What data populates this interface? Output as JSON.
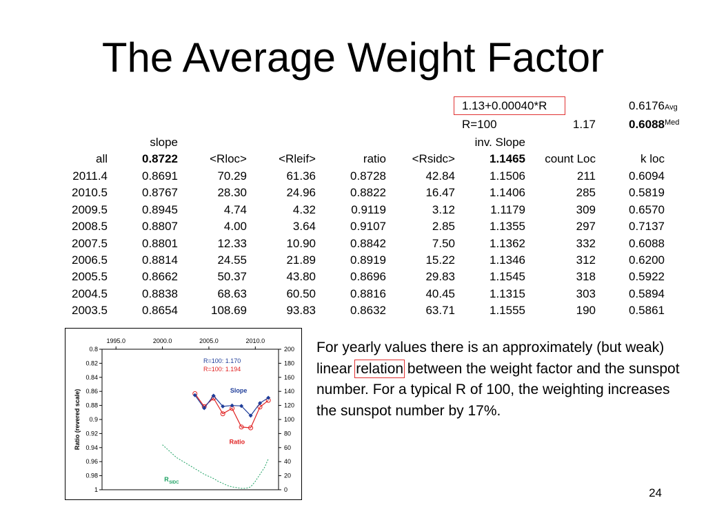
{
  "title": "The Average Weight Factor",
  "formula_box": "1.13+0.00040*R",
  "avg_value": "0.6176",
  "avg_label": "Avg",
  "r100_label": "R=100",
  "r100_value": "1.17",
  "med_value": "0.6088",
  "med_label": "Med",
  "slope_label": "slope",
  "inv_slope_label": "inv. Slope",
  "headers": {
    "all": "all",
    "slope": "0.8722",
    "rloc": "<Rloc>",
    "rleif": "<Rleif>",
    "ratio": "ratio",
    "rsidc": "<Rsidc>",
    "invslope": "1.1465",
    "count": "count Loc",
    "kloc": "k loc"
  },
  "rows": [
    [
      "2011.4",
      "0.8691",
      "70.29",
      "61.36",
      "0.8728",
      "42.84",
      "1.1506",
      "211",
      "0.6094"
    ],
    [
      "2010.5",
      "0.8767",
      "28.30",
      "24.96",
      "0.8822",
      "16.47",
      "1.1406",
      "285",
      "0.5819"
    ],
    [
      "2009.5",
      "0.8945",
      "4.74",
      "4.32",
      "0.9119",
      "3.12",
      "1.1179",
      "309",
      "0.6570"
    ],
    [
      "2008.5",
      "0.8807",
      "4.00",
      "3.64",
      "0.9107",
      "2.85",
      "1.1355",
      "297",
      "0.7137"
    ],
    [
      "2007.5",
      "0.8801",
      "12.33",
      "10.90",
      "0.8842",
      "7.50",
      "1.1362",
      "332",
      "0.6088"
    ],
    [
      "2006.5",
      "0.8814",
      "24.55",
      "21.89",
      "0.8919",
      "15.22",
      "1.1346",
      "312",
      "0.6200"
    ],
    [
      "2005.5",
      "0.8662",
      "50.37",
      "43.80",
      "0.8696",
      "29.83",
      "1.1545",
      "318",
      "0.5922"
    ],
    [
      "2004.5",
      "0.8838",
      "68.63",
      "60.50",
      "0.8816",
      "40.45",
      "1.1315",
      "303",
      "0.5894"
    ],
    [
      "2003.5",
      "0.8654",
      "108.69",
      "93.83",
      "0.8632",
      "63.71",
      "1.1555",
      "190",
      "0.5861"
    ]
  ],
  "paragraph": {
    "before": "For yearly values there is an approximately (but weak) linear ",
    "highlight": "relation",
    "after": " between the weight factor and the sunspot number. For a typical R of 100, the weighting increases the sunspot number by 17%."
  },
  "page_number": "24",
  "chart_data": {
    "type": "line",
    "x_ticks": [
      "1995.0",
      "2000.0",
      "2005.0",
      "2010.0"
    ],
    "x_tick_values": [
      1995,
      2000,
      2005,
      2010
    ],
    "xlim": [
      1993.5,
      2012.5
    ],
    "ylabel": "Ratio (revered scale)",
    "y_left_ticks": [
      "0.8",
      "0.82",
      "0.84",
      "0.86",
      "0.88",
      "0.9",
      "0.92",
      "0.94",
      "0.96",
      "0.98",
      "1"
    ],
    "ylim_left": [
      0.8,
      1.0
    ],
    "y_right_ticks": [
      "200",
      "180",
      "160",
      "140",
      "120",
      "100",
      "80",
      "60",
      "40",
      "20",
      "0"
    ],
    "ylim_right": [
      0,
      200
    ],
    "legend": [
      {
        "text": "R=100: 1.170",
        "color": "#1f3d99"
      },
      {
        "text": "R=100: 1.194",
        "color": "#e02020"
      }
    ],
    "series": [
      {
        "name": "Slope",
        "color": "#1f3d99",
        "x": [
          2003.5,
          2004.5,
          2005.5,
          2006.5,
          2007.5,
          2008.5,
          2009.5,
          2010.5,
          2011.4
        ],
        "values": [
          0.8654,
          0.8838,
          0.8662,
          0.8814,
          0.8801,
          0.8807,
          0.8945,
          0.8767,
          0.8691
        ]
      },
      {
        "name": "Ratio",
        "color": "#e02020",
        "x": [
          2003.5,
          2004.5,
          2005.5,
          2006.5,
          2007.5,
          2008.5,
          2009.5,
          2010.5,
          2011.4
        ],
        "values": [
          0.8632,
          0.8816,
          0.8696,
          0.8919,
          0.8842,
          0.9107,
          0.9119,
          0.8822,
          0.8728
        ]
      },
      {
        "name": "R",
        "label_sub": "SIDC",
        "color": "#1aa060",
        "axis": "right",
        "x": [
          2000.0,
          2000.5,
          2001.0,
          2001.5,
          2002.0,
          2002.5,
          2003.0,
          2003.5,
          2004.0,
          2004.5,
          2005.0,
          2005.5,
          2006.0,
          2006.5,
          2007.0,
          2007.5,
          2008.0,
          2008.5,
          2009.0,
          2009.5,
          2010.0,
          2010.5,
          2011.0,
          2011.4
        ],
        "values": [
          64,
          58,
          52,
          46,
          42,
          38,
          34,
          30,
          26,
          22,
          19,
          16,
          12,
          9,
          6,
          4,
          3,
          2,
          2,
          4,
          12,
          22,
          32,
          44
        ]
      }
    ]
  }
}
